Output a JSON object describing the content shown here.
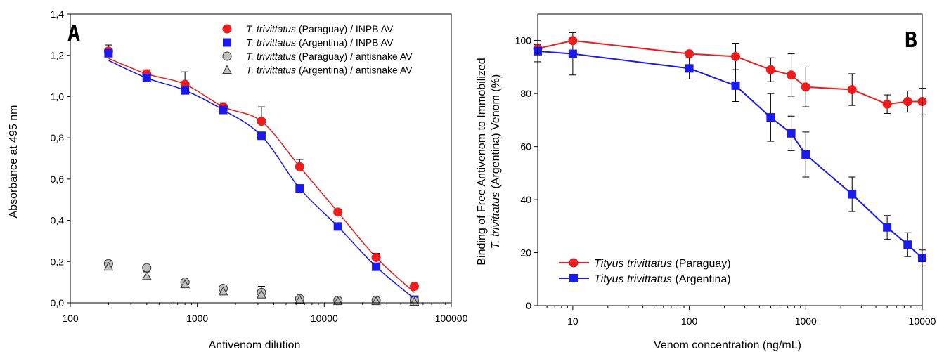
{
  "colors": {
    "red": "#ee1c1c",
    "blue": "#1a1aee",
    "gray_fill": "#c0c0c0",
    "black": "#000000"
  },
  "chart_data": [
    {
      "type": "scatter",
      "panel": "A",
      "xlabel": "Antivenom dilution",
      "ylabel": "Absorbance at 495 nm",
      "xscale": "log",
      "xlim": [
        100,
        100000
      ],
      "ylim": [
        0,
        1.4
      ],
      "xticks": [
        "100",
        "1000",
        "10000",
        "100000"
      ],
      "yticks": [
        "0,0",
        "0,2",
        "0,4",
        "0,6",
        "0,8",
        "1,0",
        "1,2",
        "1,4"
      ],
      "legend_position": "top-right",
      "x": [
        200,
        400,
        800,
        1600,
        3200,
        6400,
        12800,
        25600,
        51200
      ],
      "series": [
        {
          "name_italic": "T. trivittatus",
          "name_rest": " (Paraguay) / INPB AV",
          "marker": "circle",
          "color": "red",
          "values": [
            1.22,
            1.11,
            1.06,
            0.95,
            0.88,
            0.66,
            0.44,
            0.22,
            0.08
          ],
          "errors": [
            0.03,
            0.02,
            0.06,
            0.02,
            0.07,
            0.035,
            0.015,
            0.02,
            0.0
          ],
          "fit_curve": true
        },
        {
          "name_italic": "T. trivittatus",
          "name_rest": " (Argentina) / INPB AV",
          "marker": "square",
          "color": "blue",
          "values": [
            1.21,
            1.09,
            1.03,
            0.935,
            0.81,
            0.555,
            0.37,
            0.175,
            0.015
          ],
          "errors": [
            0.015,
            0.01,
            0.01,
            0.01,
            0.0,
            0.0,
            0.0,
            0.0,
            0.0
          ],
          "fit_curve": true
        },
        {
          "name_italic": "T. trivittatus",
          "name_rest": " (Paraguay) / antisnake AV",
          "marker": "circle",
          "color": "gray",
          "values": [
            0.19,
            0.17,
            0.1,
            0.07,
            0.05,
            0.02,
            0.012,
            0.012,
            0.01
          ],
          "errors": [
            0.01,
            0.01,
            0.01,
            0.01,
            0.03,
            0.01,
            0.0,
            0.0,
            0.0
          ]
        },
        {
          "name_italic": "T. trivittatus",
          "name_rest": " (Argentina) / antisnake AV",
          "marker": "triangle",
          "color": "gray",
          "values": [
            0.175,
            0.13,
            0.09,
            0.055,
            0.04,
            0.015,
            0.008,
            0.008,
            0.005
          ],
          "errors": [
            0.01,
            0.02,
            0.01,
            0.01,
            0.02,
            0.0,
            0.0,
            0.0,
            0.0
          ]
        }
      ]
    },
    {
      "type": "line",
      "panel": "B",
      "xlabel": "Venom concentration (ng/mL)",
      "ylabel_line1": "Binding of Free Antivenom to Immobilized",
      "ylabel_line2_italic": "T. trivittatus",
      "ylabel_line2_rest": " (Argentina) Venom (%)",
      "xscale": "log",
      "xlim": [
        5,
        10000
      ],
      "ylim": [
        0,
        110
      ],
      "xticks": [
        "10",
        "100",
        "1000",
        "10000"
      ],
      "yticks": [
        "0",
        "20",
        "40",
        "60",
        "80",
        "100"
      ],
      "legend_position": "bottom-left",
      "series": [
        {
          "name_italic": "Tityus trivittatus",
          "name_rest": " (Paraguay)",
          "marker": "circle",
          "color": "red",
          "x": [
            5,
            10,
            100,
            250,
            500,
            750,
            1000,
            2500,
            5000,
            7500,
            10000
          ],
          "values": [
            97,
            100,
            95,
            94,
            89,
            87,
            82.5,
            81.5,
            76,
            77,
            77
          ],
          "errors": [
            1.5,
            0,
            0,
            5,
            4.5,
            8,
            7.5,
            6,
            3.5,
            4,
            5
          ]
        },
        {
          "name_italic": "Tityus trivittatus",
          "name_rest": " (Argentina)",
          "marker": "square",
          "color": "blue",
          "x": [
            5,
            10,
            100,
            250,
            500,
            750,
            1000,
            2500,
            5000,
            7500,
            10000
          ],
          "values": [
            96,
            95,
            89.5,
            83,
            71,
            65,
            57,
            42,
            29.5,
            23,
            18
          ],
          "errors": [
            4,
            8,
            4,
            6,
            9,
            6.5,
            8.5,
            6.5,
            4.5,
            4.5,
            3
          ]
        }
      ]
    }
  ]
}
